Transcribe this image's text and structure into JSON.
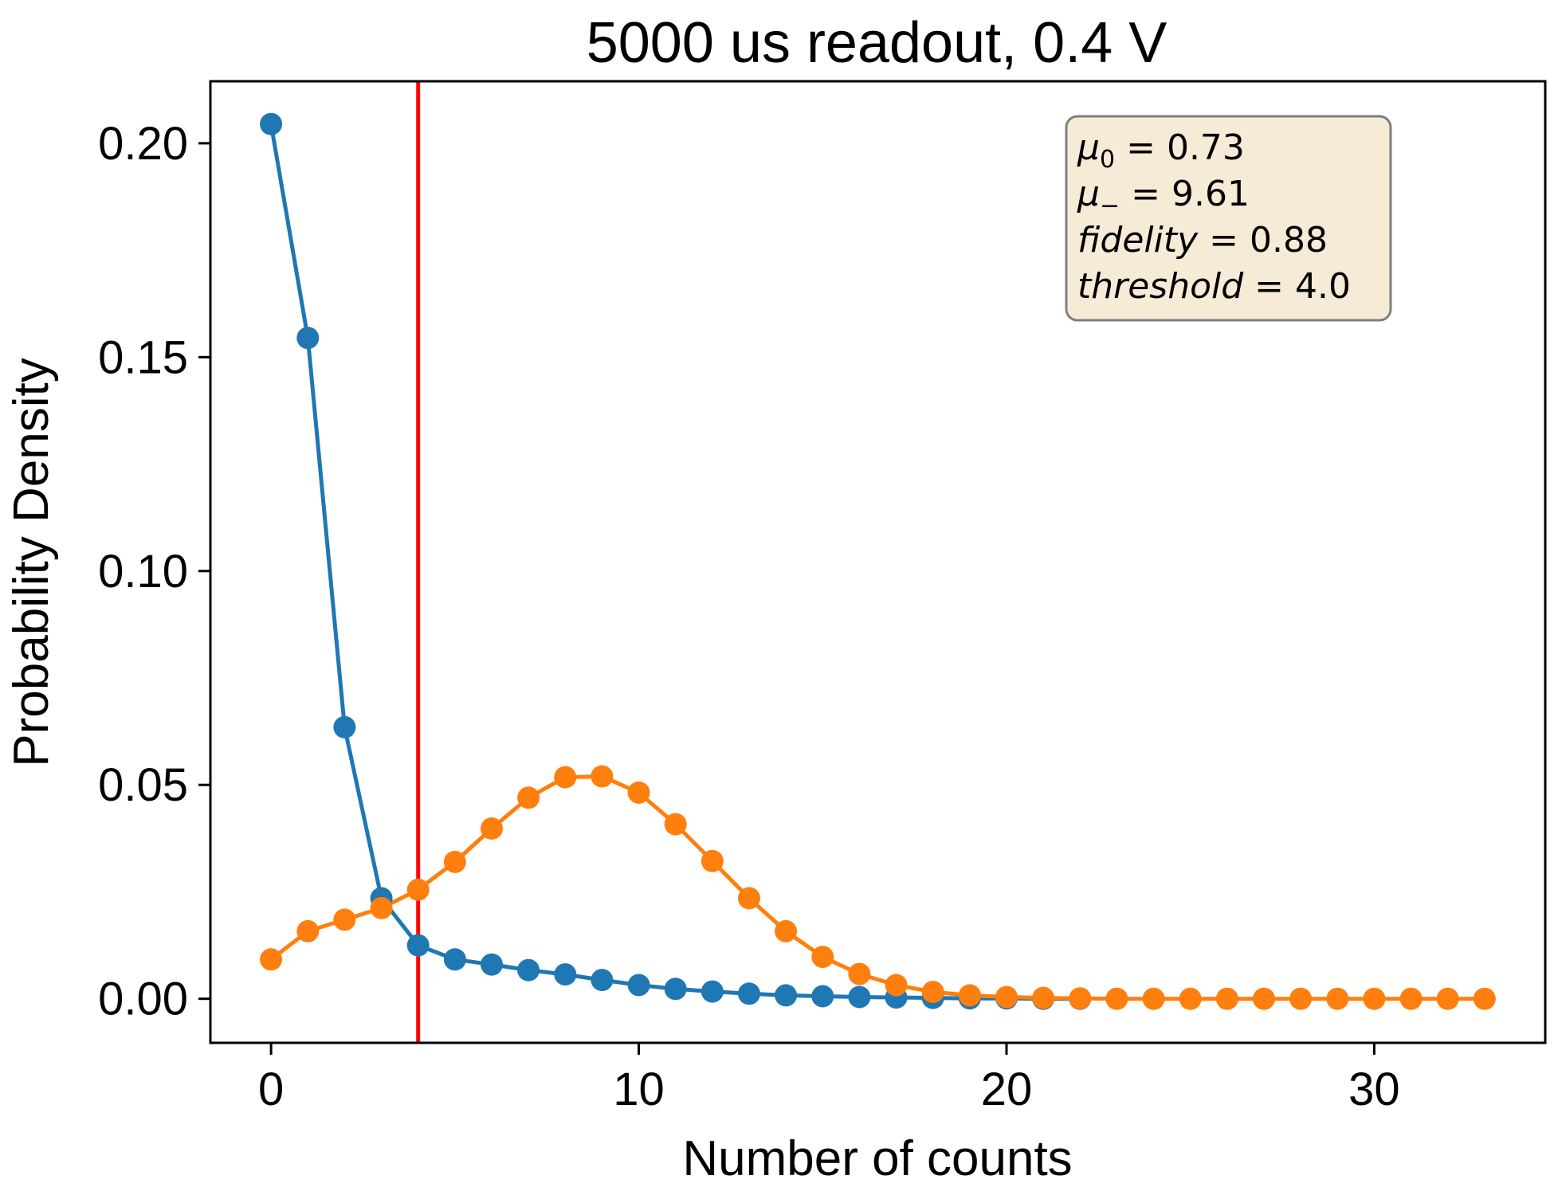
{
  "chart_data": {
    "type": "line",
    "title": "5000 us readout, 0.4 V",
    "xlabel": "Number of counts",
    "ylabel": "Probability Density",
    "xlim": [
      -1.65,
      34.65
    ],
    "ylim": [
      -0.0103,
      0.2145
    ],
    "xticks": [
      0,
      10,
      20,
      30
    ],
    "xtick_labels": [
      "0",
      "10",
      "20",
      "30"
    ],
    "yticks": [
      0.0,
      0.05,
      0.1,
      0.15,
      0.2
    ],
    "ytick_labels": [
      "0.00",
      "0.05",
      "0.10",
      "0.15",
      "0.20"
    ],
    "grid": false,
    "threshold": {
      "x": 4,
      "color": "#ff0000"
    },
    "series": [
      {
        "color": "#1f77b4",
        "x": [
          0,
          1,
          2,
          3,
          4,
          5,
          6,
          7,
          8,
          9,
          10,
          11,
          12,
          13,
          14,
          15,
          16,
          17,
          18,
          19,
          20,
          21,
          22
        ],
        "values": [
          0.2045,
          0.1545,
          0.0635,
          0.0235,
          0.0125,
          0.0092,
          0.008,
          0.0067,
          0.0057,
          0.0044,
          0.0032,
          0.0023,
          0.0017,
          0.0012,
          0.0008,
          0.0006,
          0.0004,
          0.0003,
          0.0002,
          0.0001,
          0.0001,
          0.0,
          0.0
        ]
      },
      {
        "color": "#ff7f0e",
        "x": [
          0,
          1,
          2,
          3,
          4,
          5,
          6,
          7,
          8,
          9,
          10,
          11,
          12,
          13,
          14,
          15,
          16,
          17,
          18,
          19,
          20,
          21,
          22,
          23,
          24,
          25,
          26,
          27,
          28,
          29,
          30,
          31,
          32,
          33
        ],
        "values": [
          0.0092,
          0.0158,
          0.0185,
          0.0212,
          0.0255,
          0.032,
          0.0398,
          0.047,
          0.0518,
          0.052,
          0.0482,
          0.0408,
          0.0322,
          0.0235,
          0.0158,
          0.0098,
          0.0058,
          0.0032,
          0.0016,
          0.0008,
          0.0004,
          0.0002,
          0.0001,
          0.0,
          0.0,
          0.0,
          0.0,
          0.0,
          0.0,
          0.0,
          0.0,
          0.0,
          0.0,
          0.0
        ]
      }
    ],
    "annotation": {
      "placement": "top-right",
      "background": "#f6ebd6",
      "border": "#7f7f7f",
      "lines": [
        {
          "var": "μ",
          "sub": "0",
          "eq": "= 0.73"
        },
        {
          "var": "μ",
          "sub": "−",
          "eq": "= 9.61"
        },
        {
          "var": "fidelity",
          "sub": "",
          "eq": "= 0.88"
        },
        {
          "var": "threshold",
          "sub": "",
          "eq": "= 4.0"
        }
      ]
    }
  }
}
